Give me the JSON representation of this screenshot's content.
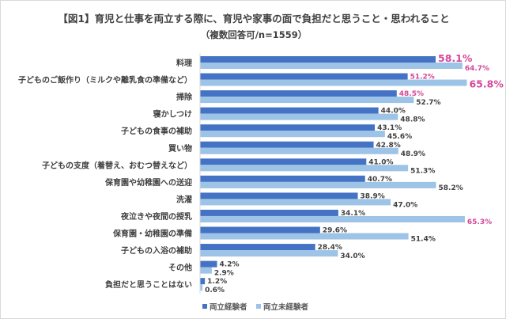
{
  "chart_data": {
    "type": "bar",
    "orientation": "horizontal",
    "title": "【図1】育児と仕事を両立する際に、育児や家事の面で負担だと思うこと・思われること",
    "subtitle": "（複数回答可/n=1559）",
    "categories": [
      "料理",
      "子どものご飯作り（ミルクや離乳食の準備など）",
      "掃除",
      "寝かしつけ",
      "子どもの食事の補助",
      "買い物",
      "子どもの支度（着替え、おむつ替えなど）",
      "保育園や幼稚園への送迎",
      "洗濯",
      "夜泣きや夜間の授乳",
      "保育園・幼稚園の準備",
      "子どもの入浴の補助",
      "その他",
      "負担だと思うことはない"
    ],
    "series": [
      {
        "name": "両立経験者",
        "color": "#4472c4",
        "values": [
          58.1,
          51.2,
          48.5,
          44.0,
          43.1,
          42.8,
          41.0,
          40.7,
          38.9,
          34.1,
          29.6,
          28.4,
          4.2,
          1.2
        ],
        "value_labels": [
          "58.1%",
          "51.2%",
          "48.5%",
          "44.0%",
          "43.1%",
          "42.8%",
          "41.0%",
          "40.7%",
          "38.9%",
          "34.1%",
          "29.6%",
          "28.4%",
          "4.2%",
          "1.2%"
        ]
      },
      {
        "name": "両立未経験者",
        "color": "#9dc3e6",
        "values": [
          64.7,
          65.8,
          52.7,
          48.8,
          45.6,
          48.9,
          51.3,
          58.2,
          47.0,
          65.3,
          51.4,
          34.0,
          2.9,
          0.6
        ],
        "value_labels": [
          "64.7%",
          "65.8%",
          "52.7%",
          "48.8%",
          "45.6%",
          "48.9%",
          "51.3%",
          "58.2%",
          "47.0%",
          "65.3%",
          "51.4%",
          "34.0%",
          "2.9%",
          "0.6%"
        ]
      }
    ],
    "highlight_color": "#d6479a",
    "highlights": [
      [
        0,
        0,
        "large"
      ],
      [
        1,
        0,
        "small"
      ],
      [
        2,
        0,
        "small"
      ],
      [
        0,
        1,
        "small"
      ],
      [
        1,
        1,
        "large"
      ],
      [
        9,
        1,
        "small"
      ]
    ],
    "xlim": [
      0,
      70
    ],
    "grid": false,
    "legend": "bottom"
  }
}
